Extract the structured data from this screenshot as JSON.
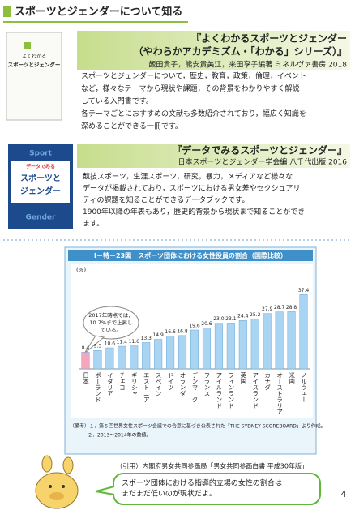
{
  "header": {
    "title": "スポーツとジェンダーについて知る"
  },
  "books": [
    {
      "cover": [
        "よくわかる",
        "スポーツとジェンダー"
      ],
      "title": [
        "『よくわかるスポーツとジェンダー",
        "（やわらかアカデミズム・「わかる」シリーズ）』"
      ],
      "meta": "飯田貴子，熊安貴美江，来田享子編著 ミネルヴァ書房 2018",
      "description": [
        "スポーツとジェンダーについて，歴史，教育，政策，倫理，イベント",
        "など，様々なテーマから現状や課題，その背景をわかりやすく解説",
        "している入門書です。",
        "各テーマごとにおすすめの文献も多数紹介されており，幅広く知識を",
        "深めることができる一冊です。"
      ]
    },
    {
      "cover": [
        "Sport",
        "データでみる",
        "スポーツと",
        "ジェンダー",
        "Gender"
      ],
      "title": [
        "『データでみるスポーツとジェンダー』"
      ],
      "meta": "日本スポーツとジェンダー学会編 八千代出版 2016",
      "description": [
        "競技スポーツ，生涯スポーツ，研究，暴力，メディアなど様々な",
        "データが掲載されており，スポーツにおける男女差やセクシュアリ",
        "ティの課題を知ることができるデータブックです。",
        "1900年以降の年表もあり，歴史的背景から現状まで知ることができ",
        "ます。"
      ]
    }
  ],
  "chart_data": {
    "type": "bar",
    "title": "Ⅰ－特－23図　スポーツ団体における女性役員の割合（国際比較）",
    "y_unit": "(%)",
    "categories": [
      "日本",
      "ポーランド",
      "イタリア",
      "チェコ",
      "ギリシャ",
      "エストニア",
      "スペイン",
      "ドイツ",
      "オランダ",
      "デンマーク",
      "フランス",
      "アイルランド",
      "フィンランド",
      "英国",
      "アイスランド",
      "カナダ",
      "オーストラリア",
      "米国",
      "ノルウェー"
    ],
    "values": [
      8.4,
      9.3,
      10.6,
      11.4,
      11.6,
      13.3,
      14.9,
      16.6,
      16.8,
      19.6,
      20.6,
      23.0,
      23.1,
      24.4,
      25.2,
      27.9,
      28.7,
      28.8,
      37.4
    ],
    "value_labels": [
      "8.4",
      "9.3",
      "10.6",
      "11.4",
      "11.6",
      "13.3",
      "14.9",
      "16.6",
      "16.8",
      "19.6",
      "20.6",
      "23.0",
      "23.1",
      "24.4",
      "25.2",
      "27.9",
      "28.7",
      "28.8",
      "37.4"
    ],
    "colors": [
      "#f4a6bf",
      "#a9d5f2",
      "#a9d5f2",
      "#a9d5f2",
      "#a9d5f2",
      "#a9d5f2",
      "#a9d5f2",
      "#a9d5f2",
      "#a9d5f2",
      "#a9d5f2",
      "#a9d5f2",
      "#a9d5f2",
      "#a9d5f2",
      "#a9d5f2",
      "#a9d5f2",
      "#a9d5f2",
      "#a9d5f2",
      "#a9d5f2",
      "#a9d5f2"
    ],
    "ylim": [
      0,
      40
    ],
    "annotation": [
      "2017年時点では，",
      "10.7%まで上昇し",
      "ている。"
    ],
    "notes": [
      "（備考）１．第５回世界女性スポーツ会議での合意に基づき公表された「THE SYDNEY SCOREBOARD」より作成。",
      "２．2013～2014年の数値。"
    ]
  },
  "citation": "（引用）内閣府男女共同参画局「男女共同参画白書 平成30年版」",
  "bubble": [
    "スポーツ団体における指導的立場の女性の割合は",
    "まだまだ低いのが現状だよ。"
  ],
  "page_number": "4"
}
